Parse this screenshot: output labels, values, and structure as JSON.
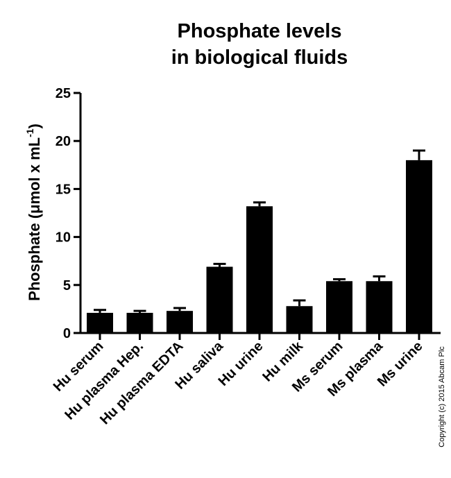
{
  "chart_data": {
    "type": "bar",
    "title_lines": [
      "Phosphate levels",
      "in biological fluids"
    ],
    "ylabel_main": "Phosphate (",
    "ylabel_mu": "μ",
    "ylabel_mid": "mol x mL",
    "ylabel_sup": "-1",
    "ylabel_end": ")",
    "ylim": [
      0,
      25
    ],
    "yticks": [
      "0",
      "5",
      "10",
      "15",
      "20",
      "25"
    ],
    "categories": [
      "Hu serum",
      "Hu plasma Hep.",
      "Hu plasma EDTA",
      "Hu saliva",
      "Hu urine",
      "Hu milk",
      "Ms serum",
      "Ms plasma",
      "Ms urine"
    ],
    "values": [
      2.1,
      2.1,
      2.3,
      6.9,
      13.2,
      2.8,
      5.4,
      5.4,
      18.0
    ],
    "errors": [
      0.3,
      0.2,
      0.3,
      0.3,
      0.4,
      0.6,
      0.2,
      0.5,
      1.0
    ],
    "bar_color": "#000000",
    "grid": false,
    "legend": "none"
  },
  "copyright": "Copyright (c) 2015 Abcam Plc"
}
